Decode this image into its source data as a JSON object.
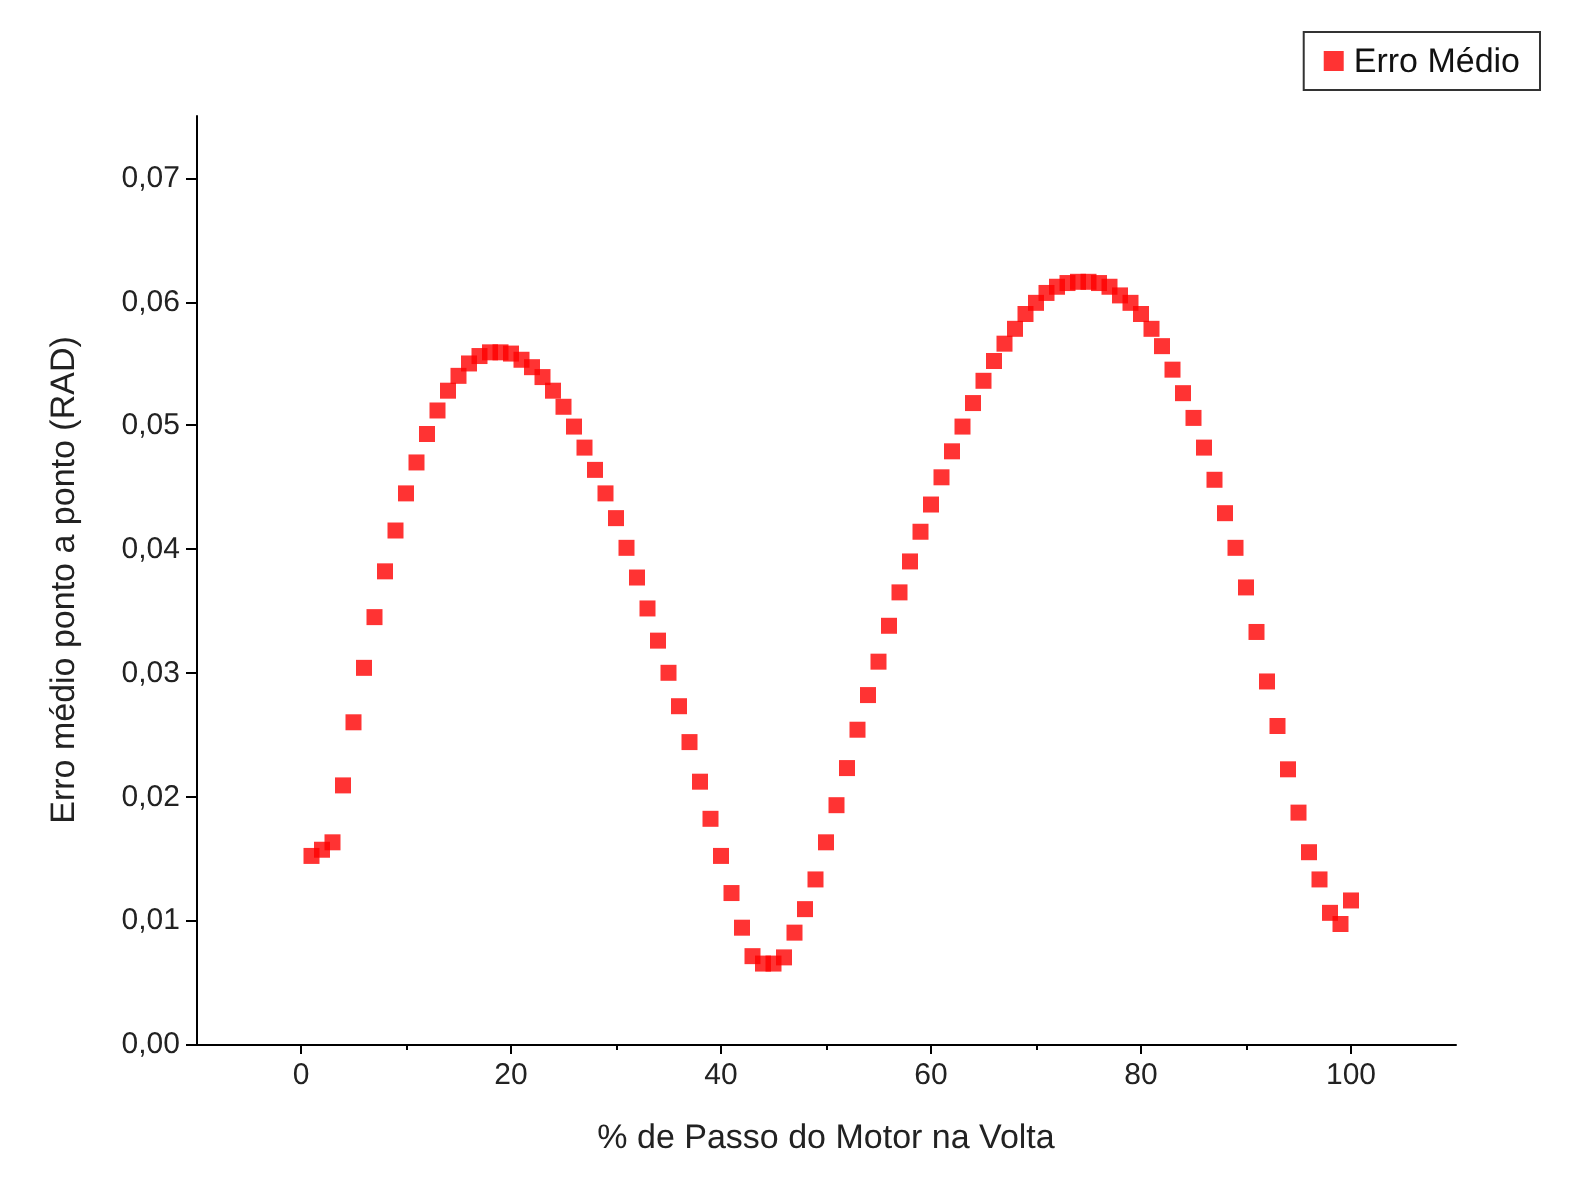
{
  "chart_data": {
    "type": "scatter",
    "xlabel": "% de Passo do Motor na Volta",
    "ylabel": "Erro médio ponto a ponto (RAD)",
    "x": [
      1,
      2,
      3,
      4,
      5,
      6,
      7,
      8,
      9,
      10,
      11,
      12,
      13,
      14,
      15,
      16,
      17,
      18,
      19,
      20,
      21,
      22,
      23,
      24,
      25,
      26,
      27,
      28,
      29,
      30,
      31,
      32,
      33,
      34,
      35,
      36,
      37,
      38,
      39,
      40,
      41,
      42,
      43,
      44,
      45,
      46,
      47,
      48,
      49,
      50,
      51,
      52,
      53,
      54,
      55,
      56,
      57,
      58,
      59,
      60,
      61,
      62,
      63,
      64,
      65,
      66,
      67,
      68,
      69,
      70,
      71,
      72,
      73,
      74,
      75,
      76,
      77,
      78,
      79,
      80,
      81,
      82,
      83,
      84,
      85,
      86,
      87,
      88,
      89,
      90,
      91,
      92,
      93,
      94,
      95,
      96,
      97,
      98,
      99,
      100
    ],
    "series": [
      {
        "name": "Erro Médio",
        "color": "#ff0000",
        "values": [
          0.0152,
          0.0157,
          0.0163,
          0.0209,
          0.026,
          0.0304,
          0.0345,
          0.0382,
          0.0415,
          0.0445,
          0.047,
          0.0493,
          0.0512,
          0.0528,
          0.054,
          0.055,
          0.0556,
          0.0559,
          0.0559,
          0.0558,
          0.0553,
          0.0547,
          0.0539,
          0.0528,
          0.0515,
          0.0499,
          0.0482,
          0.0464,
          0.0445,
          0.0425,
          0.0401,
          0.0377,
          0.0352,
          0.0326,
          0.03,
          0.0273,
          0.0244,
          0.0212,
          0.0182,
          0.0152,
          0.0122,
          0.0094,
          0.0071,
          0.0065,
          0.0065,
          0.007,
          0.009,
          0.0109,
          0.0133,
          0.0163,
          0.0193,
          0.0223,
          0.0254,
          0.0282,
          0.0309,
          0.0338,
          0.0365,
          0.039,
          0.0414,
          0.0436,
          0.0458,
          0.0479,
          0.0499,
          0.0518,
          0.0536,
          0.0552,
          0.0566,
          0.0578,
          0.059,
          0.0599,
          0.0607,
          0.0612,
          0.0615,
          0.0616,
          0.0616,
          0.0615,
          0.0612,
          0.0605,
          0.0599,
          0.059,
          0.0578,
          0.0564,
          0.0545,
          0.0526,
          0.0506,
          0.0482,
          0.0456,
          0.0429,
          0.0401,
          0.0369,
          0.0333,
          0.0293,
          0.0257,
          0.0222,
          0.0187,
          0.0155,
          0.0133,
          0.0106,
          0.0097,
          0.0116
        ]
      }
    ],
    "xlim": [
      -10,
      110
    ],
    "xticks": [
      0,
      20,
      40,
      60,
      80,
      100
    ],
    "ylim": [
      0,
      0.075
    ],
    "yticks": [
      {
        "value": 0,
        "label": "0,00"
      },
      {
        "value": 0.01,
        "label": "0,01"
      },
      {
        "value": 0.02,
        "label": "0,02"
      },
      {
        "value": 0.03,
        "label": "0,03"
      },
      {
        "value": 0.04,
        "label": "0,04"
      },
      {
        "value": 0.05,
        "label": "0,05"
      },
      {
        "value": 0.06,
        "label": "0,06"
      },
      {
        "value": 0.07,
        "label": "0,07"
      }
    ],
    "grid": false,
    "legend": "top right",
    "marker": "square"
  }
}
